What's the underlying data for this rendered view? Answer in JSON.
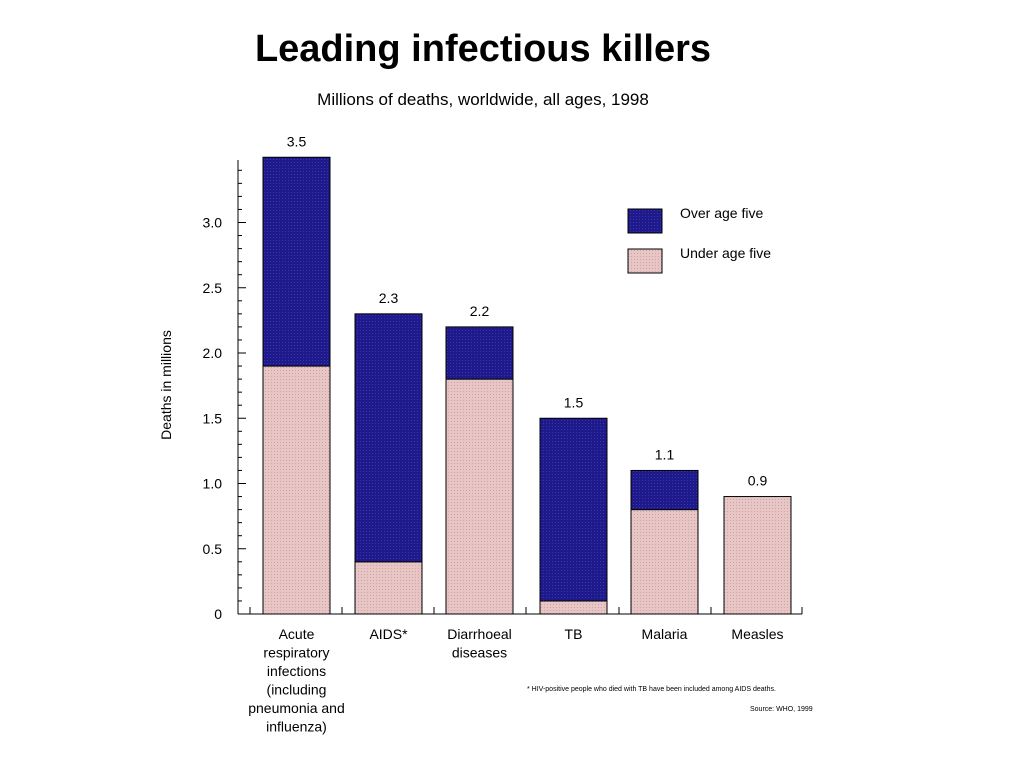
{
  "chart_data": {
    "type": "bar",
    "stacked": true,
    "title": "Leading infectious killers",
    "subtitle": "Millions of deaths, worldwide, all ages, 1998",
    "ylabel": "Deaths in millions",
    "xlabel": "",
    "ylim": [
      0,
      3.5
    ],
    "yticks": [
      {
        "value": 0,
        "label": "0"
      },
      {
        "value": 0.5,
        "label": "0.5"
      },
      {
        "value": 1.0,
        "label": "1.0"
      },
      {
        "value": 1.5,
        "label": "1.5"
      },
      {
        "value": 2.0,
        "label": "2.0"
      },
      {
        "value": 2.5,
        "label": "2.5"
      },
      {
        "value": 3.0,
        "label": "3.0"
      }
    ],
    "categories": [
      [
        "Acute",
        "respiratory",
        "infections",
        "(including",
        "pneumonia and",
        "influenza)"
      ],
      [
        "AIDS*"
      ],
      [
        "Diarrhoeal",
        "diseases"
      ],
      [
        "TB"
      ],
      [
        "Malaria"
      ],
      [
        "Measles"
      ]
    ],
    "series": [
      {
        "name": "Under age five",
        "color": "#e6c3c3",
        "values": [
          1.9,
          0.4,
          1.8,
          0.1,
          0.8,
          0.9
        ]
      },
      {
        "name": "Over age five",
        "color": "#1e1a8c",
        "values": [
          1.6,
          1.9,
          0.4,
          1.4,
          0.3,
          0.0
        ]
      }
    ],
    "totals": [
      {
        "value": 3.5,
        "label": "3.5"
      },
      {
        "value": 2.3,
        "label": "2.3"
      },
      {
        "value": 2.2,
        "label": "2.2"
      },
      {
        "value": 1.5,
        "label": "1.5"
      },
      {
        "value": 1.1,
        "label": "1.1"
      },
      {
        "value": 0.9,
        "label": "0.9"
      }
    ],
    "legend": [
      {
        "label": "Over age five",
        "color": "#1e1a8c"
      },
      {
        "label": "Under age five",
        "color": "#e6c3c3"
      }
    ],
    "legend_position": "top-right",
    "grid": false
  },
  "footnote": "* HIV-positive people who died with TB have been included among AIDS deaths.",
  "source": "Source: WHO, 1999"
}
